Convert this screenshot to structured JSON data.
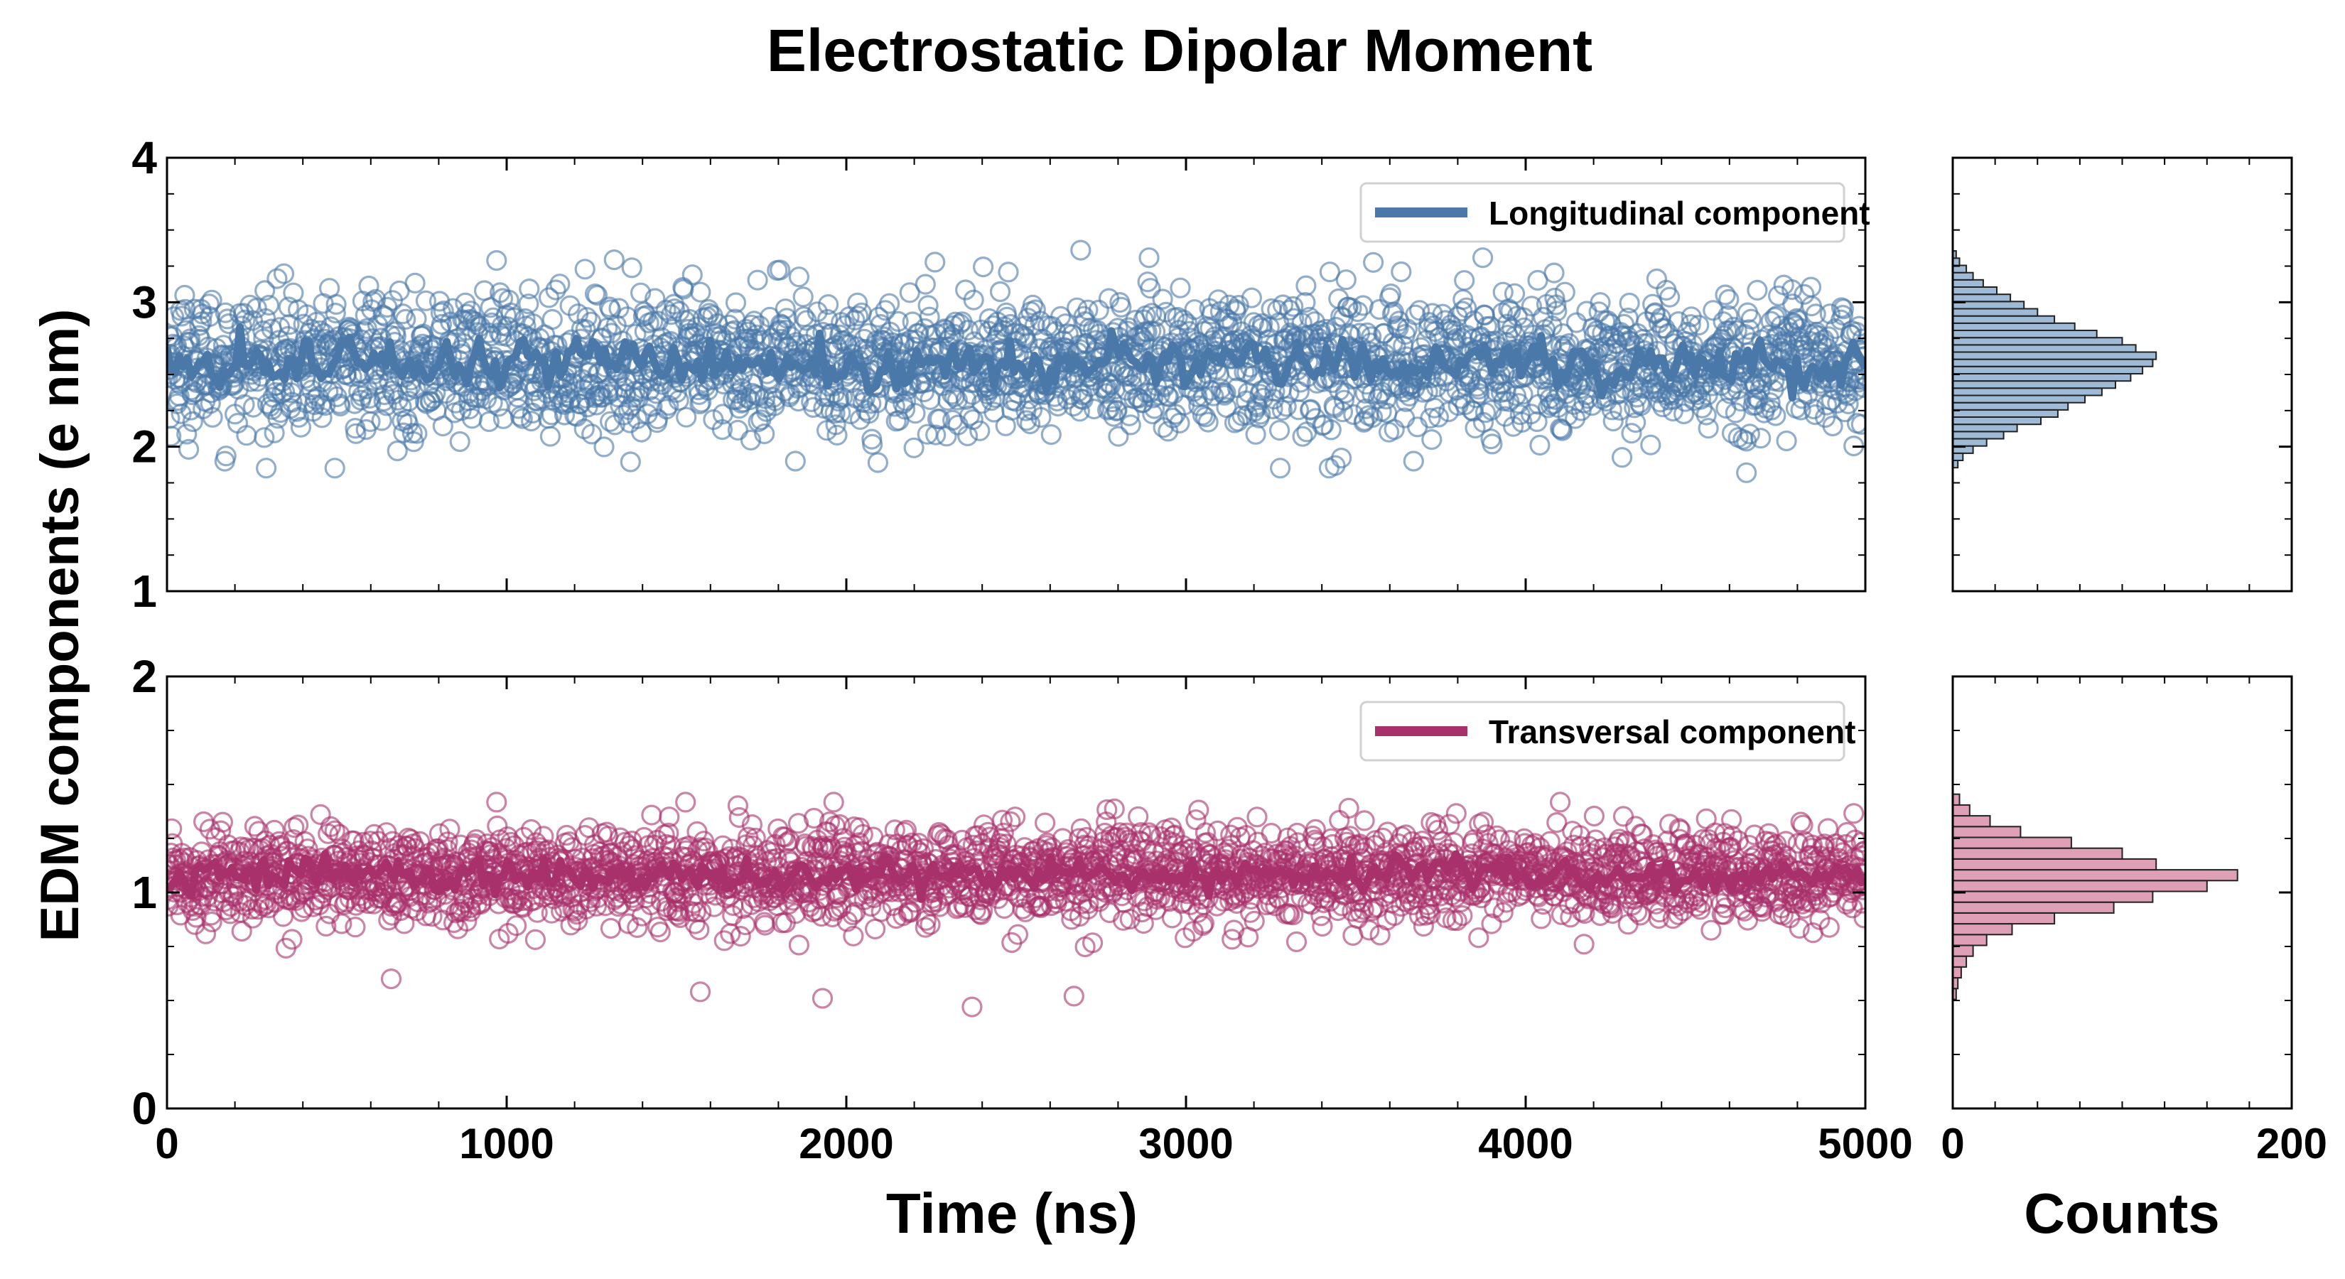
{
  "figure": {
    "title": "Electrostatic Dipolar Moment",
    "ylabel": "EDM components (e nm)",
    "xlabel_main": "Time (ns)",
    "xlabel_hist": "Counts"
  },
  "chart_data": [
    {
      "type": "scatter",
      "panel": "top",
      "series": [
        {
          "name": "Longitudinal component",
          "mean": 2.58,
          "spread": 0.28,
          "smooth_amplitude": 0.12
        }
      ],
      "x_range": [
        0,
        5000
      ],
      "ylim": [
        1,
        4
      ],
      "yticks": [
        "1",
        "2",
        "3",
        "4"
      ],
      "xticks": [
        "0",
        "1000",
        "2000",
        "3000",
        "4000",
        "5000"
      ],
      "legend": "top-right",
      "color": "#4a78a8",
      "n_points": 2500,
      "annotations": [
        {
          "x": 2690,
          "y": 3.36
        },
        {
          "x": 4650,
          "y": 1.82
        },
        {
          "x": 1850,
          "y": 1.9
        },
        {
          "x": 3670,
          "y": 1.9
        }
      ]
    },
    {
      "type": "bar",
      "panel": "top-histogram",
      "orientation": "horizontal",
      "xlim": [
        0,
        200
      ],
      "ylim": [
        1,
        4
      ],
      "bin_centers": [
        1.88,
        1.93,
        1.98,
        2.03,
        2.08,
        2.13,
        2.18,
        2.23,
        2.28,
        2.33,
        2.38,
        2.43,
        2.48,
        2.53,
        2.58,
        2.63,
        2.68,
        2.73,
        2.78,
        2.83,
        2.88,
        2.93,
        2.98,
        3.03,
        3.08,
        3.13,
        3.18,
        3.23,
        3.28,
        3.33
      ],
      "counts": [
        3,
        6,
        12,
        20,
        30,
        38,
        52,
        62,
        68,
        78,
        88,
        96,
        105,
        112,
        118,
        120,
        108,
        100,
        85,
        72,
        60,
        50,
        42,
        34,
        26,
        18,
        12,
        8,
        4,
        2
      ],
      "color": "#7fa3c8"
    },
    {
      "type": "scatter",
      "panel": "bottom",
      "series": [
        {
          "name": "Transversal component",
          "mean": 1.08,
          "spread": 0.13,
          "smooth_amplitude": 0.06
        }
      ],
      "x_range": [
        0,
        5000
      ],
      "ylim": [
        0,
        2
      ],
      "yticks": [
        "0",
        "1",
        "2"
      ],
      "xticks": [
        "0",
        "1000",
        "2000",
        "3000",
        "4000",
        "5000"
      ],
      "legend": "top-right",
      "color": "#a8306b",
      "n_points": 2500,
      "annotations": [
        {
          "x": 2370,
          "y": 0.47
        },
        {
          "x": 1930,
          "y": 0.51
        },
        {
          "x": 2670,
          "y": 0.52
        },
        {
          "x": 1570,
          "y": 0.54
        },
        {
          "x": 660,
          "y": 0.6
        }
      ]
    },
    {
      "type": "bar",
      "panel": "bottom-histogram",
      "orientation": "horizontal",
      "xlim": [
        0,
        200
      ],
      "ylim": [
        0,
        2
      ],
      "bin_centers": [
        0.53,
        0.58,
        0.63,
        0.68,
        0.73,
        0.78,
        0.83,
        0.88,
        0.93,
        0.98,
        1.03,
        1.08,
        1.13,
        1.18,
        1.23,
        1.28,
        1.33,
        1.38,
        1.43
      ],
      "counts": [
        2,
        3,
        5,
        8,
        12,
        20,
        35,
        60,
        95,
        118,
        150,
        168,
        120,
        100,
        70,
        40,
        22,
        10,
        4
      ],
      "color": "#d47f9f"
    }
  ]
}
